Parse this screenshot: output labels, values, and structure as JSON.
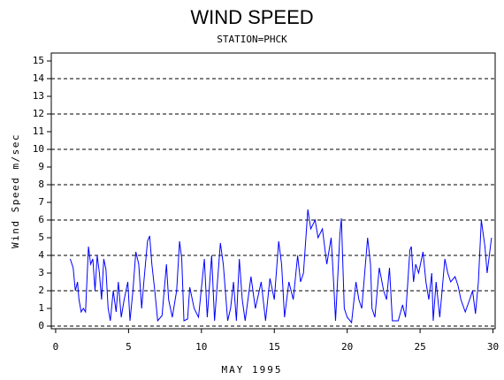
{
  "chart_data": {
    "type": "line",
    "title": "WIND SPEED",
    "subtitle": "STATION=PHCK",
    "x_label": "MAY 1995",
    "y_label": "Wind Speed m/sec",
    "color": "#0000ff",
    "xlim": [
      -0.3,
      30.15
    ],
    "ylim": [
      -0.15,
      15.45
    ],
    "xticks": [
      0,
      5,
      10,
      15,
      20,
      25,
      30
    ],
    "yticks": [
      0,
      1,
      2,
      3,
      4,
      5,
      6,
      7,
      8,
      9,
      10,
      11,
      12,
      13,
      14,
      15
    ],
    "grid_lines": [
      0,
      2,
      4,
      6,
      8,
      10,
      12,
      14
    ],
    "x": [
      1.0,
      1.2,
      1.35,
      1.5,
      1.6,
      1.75,
      1.9,
      2.05,
      2.25,
      2.4,
      2.55,
      2.7,
      2.85,
      3.0,
      3.15,
      3.3,
      3.45,
      3.6,
      3.75,
      3.95,
      4.15,
      4.3,
      4.5,
      4.7,
      4.95,
      5.1,
      5.3,
      5.5,
      5.7,
      5.9,
      6.05,
      6.3,
      6.45,
      6.6,
      6.8,
      7.0,
      7.3,
      7.6,
      7.75,
      8.0,
      8.3,
      8.5,
      8.65,
      8.8,
      9.05,
      9.2,
      9.5,
      9.8,
      10.2,
      10.4,
      10.7,
      10.9,
      11.3,
      11.5,
      11.8,
      12.0,
      12.2,
      12.4,
      12.6,
      12.8,
      13.0,
      13.4,
      13.7,
      14.1,
      14.4,
      14.7,
      15.0,
      15.3,
      15.5,
      15.7,
      16.0,
      16.3,
      16.6,
      16.8,
      17.0,
      17.3,
      17.5,
      17.8,
      18.0,
      18.3,
      18.6,
      18.9,
      19.1,
      19.2,
      19.5,
      19.6,
      19.8,
      20.0,
      20.3,
      20.6,
      20.8,
      21.0,
      21.2,
      21.4,
      21.6,
      21.7,
      21.9,
      22.2,
      22.5,
      22.7,
      22.9,
      23.1,
      23.5,
      23.8,
      24.0,
      24.3,
      24.4,
      24.55,
      24.7,
      24.9,
      25.2,
      25.4,
      25.6,
      25.8,
      25.9,
      26.1,
      26.35,
      26.7,
      26.9,
      27.1,
      27.4,
      27.6,
      27.8,
      28.1,
      28.4,
      28.6,
      28.8,
      29.0,
      29.2,
      29.45,
      29.6,
      29.9
    ],
    "values": [
      3.8,
      3.3,
      2.0,
      2.5,
      1.5,
      0.8,
      1.0,
      0.8,
      4.5,
      3.5,
      3.8,
      2.0,
      4.0,
      3.0,
      1.5,
      3.8,
      3.2,
      1.0,
      0.3,
      2.0,
      0.8,
      2.5,
      0.5,
      1.5,
      2.5,
      0.3,
      2.0,
      4.2,
      3.5,
      1.0,
      2.5,
      4.8,
      5.1,
      3.5,
      2.0,
      0.3,
      0.6,
      3.5,
      1.5,
      0.5,
      2.0,
      4.8,
      3.8,
      0.3,
      0.4,
      2.2,
      1.0,
      0.5,
      3.8,
      0.5,
      4.0,
      0.3,
      4.7,
      3.5,
      0.3,
      1.0,
      2.5,
      0.3,
      3.8,
      1.5,
      0.3,
      2.8,
      1.0,
      2.5,
      0.3,
      2.7,
      1.5,
      4.8,
      3.5,
      0.5,
      2.5,
      1.5,
      4.0,
      2.5,
      3.0,
      6.6,
      5.5,
      6.0,
      5.0,
      5.5,
      3.5,
      5.0,
      2.0,
      0.3,
      5.2,
      6.1,
      1.0,
      0.5,
      0.2,
      2.5,
      1.5,
      1.0,
      3.0,
      5.0,
      3.5,
      1.0,
      0.5,
      3.3,
      2.0,
      1.5,
      3.3,
      0.3,
      0.3,
      1.2,
      0.5,
      4.3,
      4.5,
      2.5,
      3.5,
      3.0,
      4.2,
      2.5,
      1.5,
      3.0,
      0.3,
      2.5,
      0.5,
      3.8,
      3.0,
      2.5,
      2.8,
      2.3,
      1.5,
      0.8,
      1.5,
      2.0,
      0.7,
      2.5,
      6.0,
      4.5,
      3.0,
      5.0
    ]
  }
}
